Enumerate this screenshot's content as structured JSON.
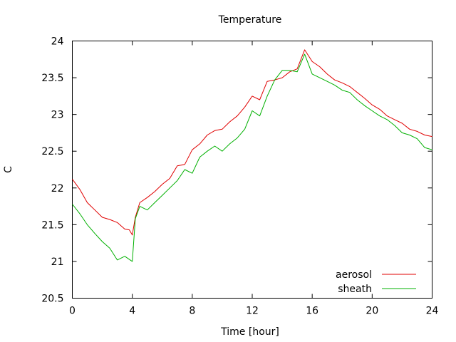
{
  "chart_data": {
    "type": "line",
    "title": "Temperature",
    "xlabel": "Time [hour]",
    "ylabel": "C",
    "xlim": [
      0,
      24
    ],
    "ylim": [
      20.5,
      24
    ],
    "xticks": [
      0,
      4,
      8,
      12,
      16,
      20,
      24
    ],
    "yticks": [
      20.5,
      21,
      21.5,
      22,
      22.5,
      23,
      23.5,
      24
    ],
    "grid": false,
    "legend_position": "bottom-right",
    "series": [
      {
        "name": "aerosol",
        "color": "#e00000",
        "x": [
          0,
          0.5,
          1,
          1.5,
          2,
          2.5,
          3,
          3.5,
          3.8,
          4,
          4.2,
          4.5,
          5,
          5.5,
          6,
          6.5,
          7,
          7.5,
          8,
          8.5,
          9,
          9.5,
          10,
          10.5,
          11,
          11.5,
          12,
          12.5,
          13,
          13.5,
          14,
          14.5,
          15,
          15.5,
          16,
          16.5,
          17,
          17.5,
          18,
          18.5,
          19,
          19.5,
          20,
          20.5,
          21,
          21.5,
          22,
          22.5,
          23,
          23.5,
          24
        ],
        "values": [
          22.12,
          21.98,
          21.8,
          21.7,
          21.6,
          21.57,
          21.53,
          21.44,
          21.43,
          21.36,
          21.6,
          21.8,
          21.87,
          21.95,
          22.05,
          22.13,
          22.3,
          22.32,
          22.52,
          22.6,
          22.72,
          22.78,
          22.8,
          22.9,
          22.98,
          23.1,
          23.25,
          23.2,
          23.45,
          23.47,
          23.5,
          23.58,
          23.62,
          23.88,
          23.72,
          23.65,
          23.55,
          23.47,
          23.43,
          23.38,
          23.3,
          23.22,
          23.13,
          23.07,
          22.98,
          22.93,
          22.88,
          22.8,
          22.77,
          22.72,
          22.7
        ]
      },
      {
        "name": "sheath",
        "color": "#00b000",
        "x": [
          0,
          0.5,
          1,
          1.5,
          2,
          2.5,
          3,
          3.5,
          4,
          4.2,
          4.5,
          5,
          5.5,
          6,
          6.5,
          7,
          7.5,
          8,
          8.5,
          9,
          9.5,
          10,
          10.5,
          11,
          11.5,
          12,
          12.5,
          13,
          13.5,
          14,
          14.5,
          15,
          15.5,
          16,
          16.5,
          17,
          17.5,
          18,
          18.5,
          19,
          19.5,
          20,
          20.5,
          21,
          21.5,
          22,
          22.5,
          23,
          23.5,
          24
        ],
        "values": [
          21.78,
          21.65,
          21.5,
          21.38,
          21.27,
          21.18,
          21.02,
          21.07,
          21.0,
          21.58,
          21.75,
          21.7,
          21.8,
          21.9,
          22.0,
          22.1,
          22.25,
          22.2,
          22.42,
          22.5,
          22.57,
          22.5,
          22.6,
          22.68,
          22.8,
          23.05,
          22.98,
          23.25,
          23.47,
          23.6,
          23.6,
          23.58,
          23.82,
          23.55,
          23.5,
          23.45,
          23.4,
          23.33,
          23.3,
          23.2,
          23.12,
          23.05,
          22.98,
          22.93,
          22.85,
          22.75,
          22.72,
          22.67,
          22.55,
          22.52
        ]
      }
    ]
  }
}
